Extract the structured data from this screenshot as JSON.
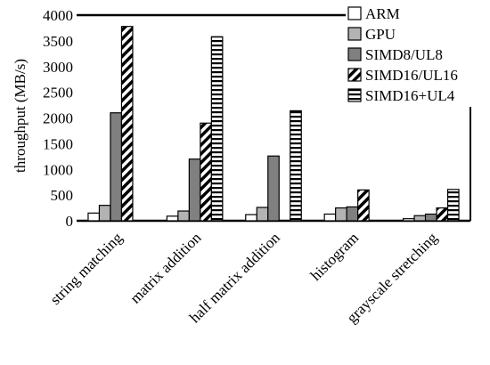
{
  "chart_data": {
    "type": "bar",
    "title": "",
    "xlabel": "",
    "ylabel": "throughput (MB/s)",
    "ylim": [
      0,
      4000
    ],
    "yticks": [
      0,
      500,
      1000,
      1500,
      2000,
      2500,
      3000,
      3500,
      4000
    ],
    "grid": false,
    "legend_position": "top-right",
    "categories": [
      "string matching",
      "matrix addition",
      "half matrix addition",
      "histogram",
      "grayscale stretching"
    ],
    "series": [
      {
        "name": "ARM",
        "pattern": "white",
        "values": [
          150,
          90,
          120,
          130,
          40
        ]
      },
      {
        "name": "GPU",
        "pattern": "light-gray",
        "values": [
          300,
          190,
          260,
          250,
          100
        ]
      },
      {
        "name": "SIMD8/UL8",
        "pattern": "dark-gray",
        "values": [
          2100,
          1200,
          1260,
          270,
          130
        ]
      },
      {
        "name": "SIMD16/UL16",
        "pattern": "diagonal",
        "values": [
          3780,
          1900,
          0,
          600,
          250
        ]
      },
      {
        "name": "SIMD16+UL4",
        "pattern": "horizontal",
        "values": [
          0,
          3580,
          2140,
          0,
          610
        ]
      }
    ],
    "colors": {
      "light-gray": "#b3b3b3",
      "dark-gray": "#808080",
      "stroke": "#000000"
    }
  }
}
